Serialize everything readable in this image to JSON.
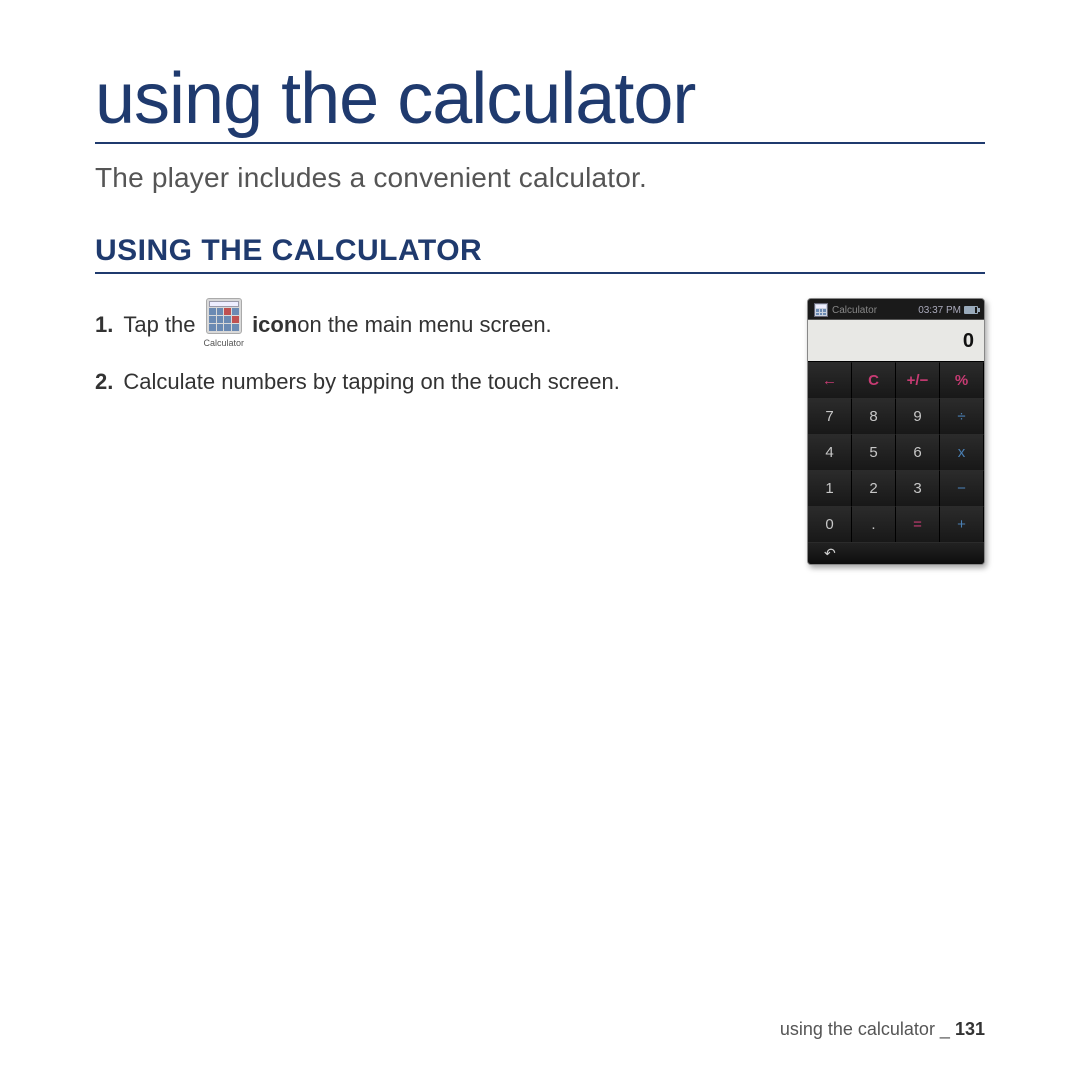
{
  "page": {
    "title": "using the calculator",
    "intro": "The player includes a convenient calculator.",
    "section_heading": "USING THE CALCULATOR",
    "footer_text": "using the calculator _ ",
    "page_number": "131"
  },
  "steps": [
    {
      "num": "1.",
      "pre": "Tap the",
      "icon_caption": "Calculator",
      "bold": "icon",
      "post": " on the main menu screen."
    },
    {
      "num": "2.",
      "pre": "Calculate numbers by tapping on the touch screen.",
      "icon_caption": "",
      "bold": "",
      "post": ""
    }
  ],
  "device": {
    "status_label": "Calculator",
    "status_time": "03:37 PM",
    "display_value": "0",
    "background_color": "#111111",
    "display_bg": "#e8e8e5",
    "key_text_color": "#c7c7c7",
    "operator_color": "#4a7fb3",
    "function_color": "#c73b73",
    "keys": [
      {
        "label": "←",
        "class": "fn"
      },
      {
        "label": "C",
        "class": "fn"
      },
      {
        "label": "+/−",
        "class": "fn"
      },
      {
        "label": "%",
        "class": "fn"
      },
      {
        "label": "7",
        "class": ""
      },
      {
        "label": "8",
        "class": ""
      },
      {
        "label": "9",
        "class": ""
      },
      {
        "label": "÷",
        "class": "op"
      },
      {
        "label": "4",
        "class": ""
      },
      {
        "label": "5",
        "class": ""
      },
      {
        "label": "6",
        "class": ""
      },
      {
        "label": "x",
        "class": "op"
      },
      {
        "label": "1",
        "class": ""
      },
      {
        "label": "2",
        "class": ""
      },
      {
        "label": "3",
        "class": ""
      },
      {
        "label": "−",
        "class": "op"
      },
      {
        "label": "0",
        "class": ""
      },
      {
        "label": ".",
        "class": ""
      },
      {
        "label": "=",
        "class": "eq"
      },
      {
        "label": "+",
        "class": "op"
      }
    ]
  },
  "colors": {
    "heading": "#1f3a6e",
    "body_text": "#333333",
    "intro_text": "#555555"
  }
}
